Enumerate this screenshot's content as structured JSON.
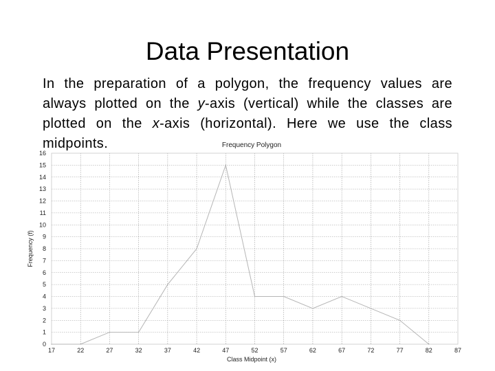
{
  "slide": {
    "title": "Data Presentation",
    "body": {
      "part1": "In the preparation of a polygon, the frequency values are always plotted on the ",
      "y_axis": "y",
      "part2": "-axis (vertical) while the classes are plotted on the ",
      "x_axis": "x",
      "part3": "-axis (horizontal). Here we use the class midpoints."
    }
  },
  "chart_data": {
    "type": "line",
    "title": "Frequency Polygon",
    "xlabel": "Class Midpoint (x)",
    "ylabel": "Frequency (f)",
    "x": [
      17,
      22,
      27,
      32,
      37,
      42,
      47,
      52,
      57,
      62,
      67,
      72,
      77,
      82
    ],
    "series": [
      {
        "values": [
          0,
          0,
          1,
          1,
          5,
          8,
          15,
          4,
          4,
          3,
          4,
          3,
          2,
          0
        ]
      }
    ],
    "x_ticks": [
      "17",
      "22",
      "27",
      "32",
      "37",
      "42",
      "47",
      "52",
      "57",
      "62",
      "67",
      "72",
      "77",
      "82",
      "87"
    ],
    "y_ticks": [
      "0",
      "1",
      "2",
      "3",
      "4",
      "5",
      "6",
      "7",
      "8",
      "9",
      "10",
      "11",
      "12",
      "13",
      "14",
      "15",
      "16"
    ],
    "xlim": [
      17,
      87
    ],
    "ylim": [
      0,
      16
    ],
    "grid": true,
    "colors": {
      "line": "#b5b5b5",
      "grid": "#9a9a9a",
      "text": "#222222"
    }
  }
}
